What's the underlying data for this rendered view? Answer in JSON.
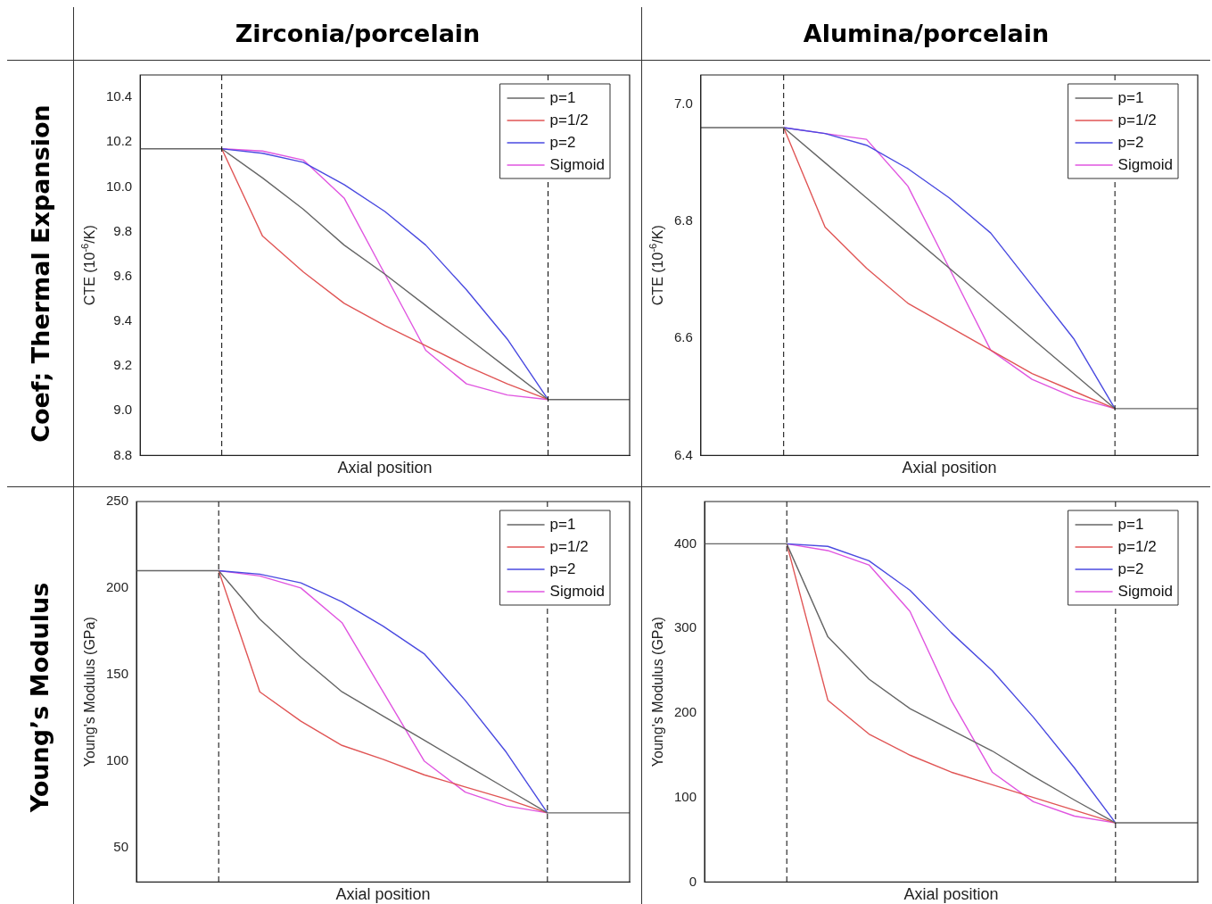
{
  "chart_data": [
    {
      "type": "line",
      "title": "Zirconia/porcelain",
      "annotations": [
        "Coef; Thermal Expansion"
      ],
      "xlabel": "Axial position",
      "ylabel": "CTE (10$^{-6}$/K)",
      "categories": [
        null,
        null,
        null,
        null,
        null,
        null,
        null,
        null,
        null,
        null,
        null,
        null,
        null
      ],
      "ylim": [
        8.8,
        10.5
      ],
      "yticks": [
        8.8,
        {
          "value": 9,
          "label": "9.0"
        },
        9.2,
        9.4,
        9.6,
        9.8,
        {
          "value": 10,
          "label": "10.0"
        },
        10.2,
        10.4
      ],
      "tick_labels": "y",
      "grid": false,
      "legend": "top right",
      "marker": "none",
      "line_style": "solid",
      "series": [
        {
          "name": "p=1",
          "color": "#666666",
          "values": [
            10.17,
            10.17,
            10.17,
            10.04,
            9.9,
            9.74,
            9.61,
            9.47,
            9.33,
            9.19,
            9.05,
            9.05,
            9.05
          ]
        },
        {
          "name": "p=1/2",
          "color": "#e05555",
          "values": [
            null,
            null,
            10.17,
            9.78,
            9.62,
            9.48,
            9.38,
            9.29,
            9.2,
            9.12,
            9.05,
            null,
            null
          ]
        },
        {
          "name": "p=2",
          "color": "#4a4ae0",
          "values": [
            null,
            null,
            10.17,
            10.15,
            10.11,
            10.01,
            9.89,
            9.74,
            9.54,
            9.32,
            9.05,
            null,
            null
          ]
        },
        {
          "name": "Sigmoid",
          "color": "#e055e0",
          "values": [
            null,
            null,
            10.17,
            10.16,
            10.12,
            9.95,
            9.61,
            9.27,
            9.12,
            9.07,
            9.05,
            null,
            null
          ]
        }
      ]
    },
    {
      "type": "line",
      "title": "Alumina/porcelain",
      "xlabel": "Axial position",
      "ylabel": "CTE (10$^{-6}$/K)",
      "categories": [
        null,
        null,
        null,
        null,
        null,
        null,
        null,
        null,
        null,
        null,
        null,
        null,
        null
      ],
      "ylim": [
        6.4,
        7.05
      ],
      "yticks": [
        6.4,
        6.6,
        6.8,
        {
          "value": 7,
          "label": "7.0"
        }
      ],
      "tick_labels": "y",
      "grid": false,
      "legend": "top right",
      "marker": "none",
      "line_style": "solid",
      "series": [
        {
          "name": "p=1",
          "color": "#666666",
          "values": [
            6.96,
            6.96,
            6.96,
            6.9,
            6.84,
            6.78,
            6.72,
            6.66,
            6.6,
            6.54,
            6.48,
            6.48,
            6.48
          ]
        },
        {
          "name": "p=1/2",
          "color": "#e05555",
          "values": [
            null,
            null,
            6.96,
            6.79,
            6.72,
            6.66,
            6.62,
            6.58,
            6.54,
            6.51,
            6.48,
            null,
            null
          ]
        },
        {
          "name": "p=2",
          "color": "#4a4ae0",
          "values": [
            null,
            null,
            6.96,
            6.95,
            6.93,
            6.89,
            6.84,
            6.78,
            6.69,
            6.6,
            6.48,
            null,
            null
          ]
        },
        {
          "name": "Sigmoid",
          "color": "#e055e0",
          "values": [
            null,
            null,
            6.96,
            6.95,
            6.94,
            6.86,
            6.72,
            6.58,
            6.53,
            6.5,
            6.48,
            null,
            null
          ]
        }
      ]
    },
    {
      "type": "line",
      "annotations": [
        "Young’s Modulus"
      ],
      "xlabel": "Axial position",
      "ylabel": "Young's Modulus (GPa)",
      "categories": [
        null,
        null,
        null,
        null,
        null,
        null,
        null,
        null,
        null,
        null,
        null,
        null,
        null
      ],
      "ylim": [
        30,
        250
      ],
      "yticks": [
        50,
        100,
        150,
        200,
        250
      ],
      "tick_labels": "y",
      "grid": false,
      "legend": "top right",
      "marker": "none",
      "line_style": "solid",
      "series": [
        {
          "name": "p=1",
          "color": "#666666",
          "values": [
            210,
            210,
            210,
            182,
            160,
            140,
            126,
            112,
            98,
            84,
            70,
            70,
            70
          ]
        },
        {
          "name": "p=1/2",
          "color": "#e05555",
          "values": [
            null,
            null,
            210,
            140,
            123,
            109,
            101,
            92,
            85,
            78,
            70,
            null,
            null
          ]
        },
        {
          "name": "p=2",
          "color": "#4a4ae0",
          "values": [
            null,
            null,
            210,
            208,
            203,
            192,
            178,
            162,
            135,
            105,
            70,
            null,
            null
          ]
        },
        {
          "name": "Sigmoid",
          "color": "#e055e0",
          "values": [
            null,
            null,
            210,
            207,
            200,
            180,
            140,
            100,
            82,
            74,
            70,
            null,
            null
          ]
        }
      ]
    },
    {
      "type": "line",
      "xlabel": "Axial position",
      "ylabel": "Young's Modulus (GPa)",
      "categories": [
        null,
        null,
        null,
        null,
        null,
        null,
        null,
        null,
        null,
        null,
        null,
        null,
        null
      ],
      "ylim": [
        0,
        450
      ],
      "yticks": [
        0,
        100,
        200,
        300,
        400
      ],
      "tick_labels": "y",
      "grid": false,
      "legend": "top right",
      "marker": "none",
      "line_style": "solid",
      "series": [
        {
          "name": "p=1",
          "color": "#666666",
          "values": [
            400,
            400,
            400,
            290,
            240,
            205,
            180,
            155,
            125,
            97,
            70,
            70,
            70
          ]
        },
        {
          "name": "p=1/2",
          "color": "#e05555",
          "values": [
            null,
            null,
            400,
            215,
            175,
            150,
            130,
            115,
            100,
            85,
            70,
            null,
            null
          ]
        },
        {
          "name": "p=2",
          "color": "#4a4ae0",
          "values": [
            null,
            null,
            400,
            397,
            380,
            345,
            295,
            250,
            195,
            135,
            70,
            null,
            null
          ]
        },
        {
          "name": "Sigmoid",
          "color": "#e055e0",
          "values": [
            null,
            null,
            400,
            392,
            375,
            320,
            215,
            130,
            95,
            78,
            70,
            null,
            null
          ]
        }
      ]
    }
  ]
}
